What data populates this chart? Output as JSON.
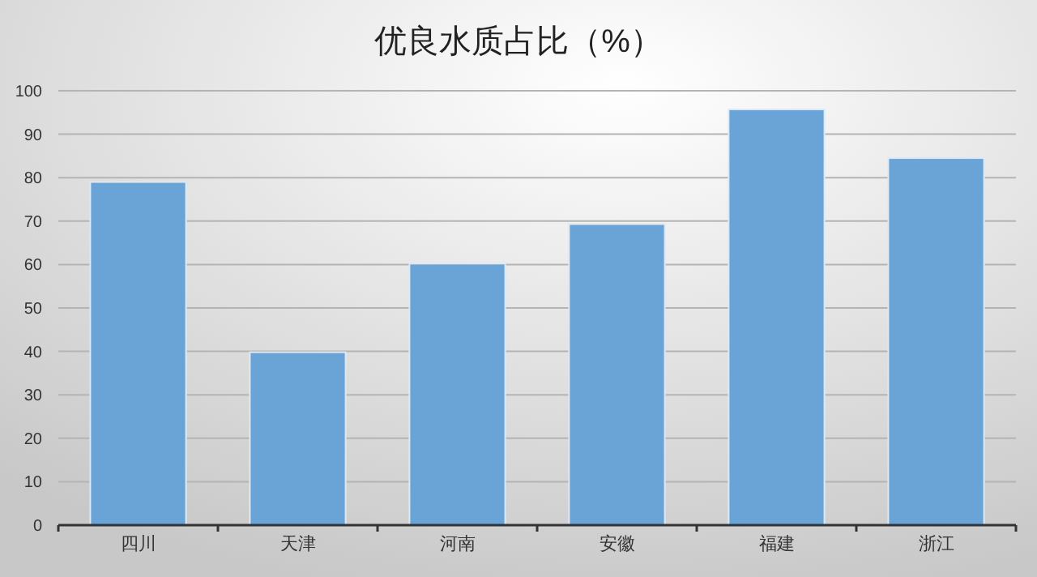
{
  "chart_data": {
    "type": "bar",
    "title": "优良水质占比（%）",
    "categories": [
      "四川",
      "天津",
      "河南",
      "安徽",
      "福建",
      "浙江"
    ],
    "values": [
      79,
      39.8,
      60.2,
      69.3,
      95.7,
      84.5
    ],
    "color": "#6aa3d6",
    "ylim": [
      0,
      100
    ],
    "yticks": [
      0,
      10,
      20,
      30,
      40,
      50,
      60,
      70,
      80,
      90,
      100
    ],
    "grid": "y"
  }
}
